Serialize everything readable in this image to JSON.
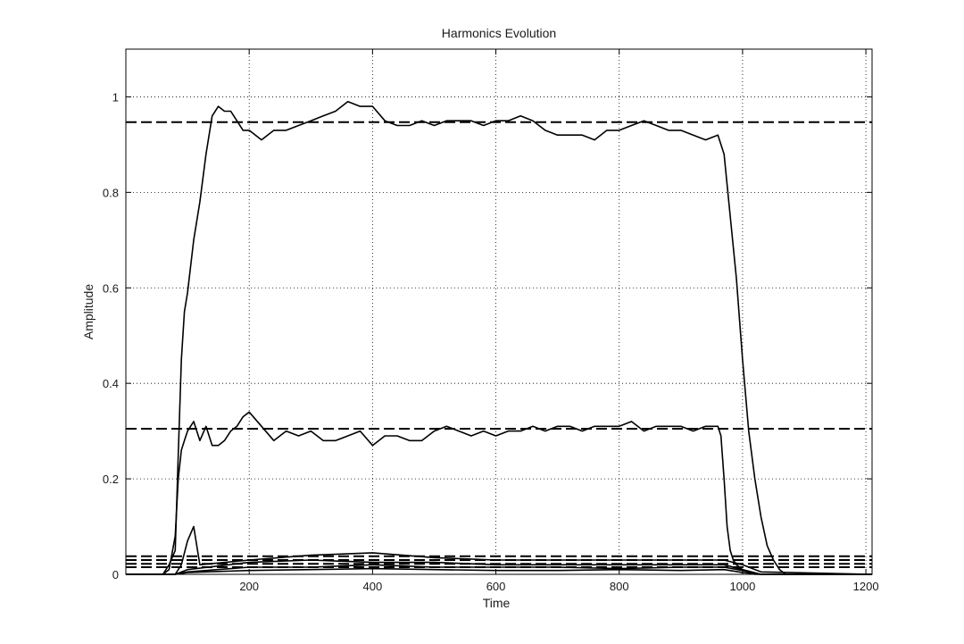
{
  "chart_data": {
    "type": "line",
    "title": "Harmonics Evolution",
    "xlabel": "Time",
    "ylabel": "Amplitude",
    "xlim": [
      0,
      1210
    ],
    "ylim": [
      0,
      1.1
    ],
    "xticks": [
      200,
      400,
      600,
      800,
      1000,
      1200
    ],
    "yticks": [
      0,
      0.2,
      0.4,
      0.6,
      0.8,
      1
    ],
    "ytick_labels": [
      "0",
      "0.2",
      "0.4",
      "0.6",
      "0.8",
      "1"
    ],
    "grid": true,
    "line_color": "#000000",
    "series": [
      {
        "style": "solid",
        "x": [
          0,
          60,
          70,
          80,
          85,
          90,
          95,
          100,
          110,
          120,
          130,
          140,
          150,
          160,
          170,
          180,
          190,
          200,
          220,
          240,
          260,
          280,
          300,
          320,
          340,
          350,
          360,
          380,
          400,
          420,
          440,
          460,
          480,
          500,
          520,
          540,
          560,
          580,
          600,
          620,
          640,
          660,
          680,
          700,
          720,
          740,
          760,
          780,
          800,
          820,
          840,
          860,
          880,
          900,
          920,
          940,
          960,
          970,
          980,
          990,
          1000,
          1010,
          1020,
          1030,
          1040,
          1050,
          1060,
          1070,
          1080,
          1100,
          1150,
          1210
        ],
        "y": [
          0.0,
          0.0,
          0.02,
          0.05,
          0.25,
          0.45,
          0.55,
          0.59,
          0.7,
          0.78,
          0.88,
          0.96,
          0.98,
          0.97,
          0.97,
          0.95,
          0.93,
          0.93,
          0.91,
          0.93,
          0.93,
          0.94,
          0.95,
          0.96,
          0.97,
          0.98,
          0.99,
          0.98,
          0.98,
          0.95,
          0.94,
          0.94,
          0.95,
          0.94,
          0.95,
          0.95,
          0.95,
          0.94,
          0.95,
          0.95,
          0.96,
          0.95,
          0.93,
          0.92,
          0.92,
          0.92,
          0.91,
          0.93,
          0.93,
          0.94,
          0.95,
          0.94,
          0.93,
          0.93,
          0.92,
          0.91,
          0.92,
          0.88,
          0.75,
          0.62,
          0.45,
          0.3,
          0.2,
          0.12,
          0.06,
          0.03,
          0.01,
          0.0,
          0.0,
          0.0,
          0.0,
          0.0
        ]
      },
      {
        "style": "solid",
        "x": [
          0,
          60,
          70,
          80,
          85,
          90,
          95,
          100,
          110,
          120,
          130,
          140,
          150,
          160,
          170,
          180,
          190,
          200,
          220,
          240,
          260,
          280,
          300,
          320,
          340,
          360,
          380,
          400,
          420,
          440,
          460,
          480,
          500,
          520,
          540,
          560,
          580,
          600,
          620,
          640,
          660,
          680,
          700,
          720,
          740,
          760,
          780,
          800,
          820,
          840,
          860,
          880,
          900,
          920,
          940,
          960,
          965,
          970,
          975,
          980,
          985,
          990,
          1000,
          1020,
          1060,
          1210
        ],
        "y": [
          0.0,
          0.0,
          0.01,
          0.08,
          0.2,
          0.26,
          0.28,
          0.3,
          0.32,
          0.28,
          0.31,
          0.27,
          0.27,
          0.28,
          0.3,
          0.31,
          0.33,
          0.34,
          0.31,
          0.28,
          0.3,
          0.29,
          0.3,
          0.28,
          0.28,
          0.29,
          0.3,
          0.27,
          0.29,
          0.29,
          0.28,
          0.28,
          0.3,
          0.31,
          0.3,
          0.29,
          0.3,
          0.29,
          0.3,
          0.3,
          0.31,
          0.3,
          0.31,
          0.31,
          0.3,
          0.31,
          0.31,
          0.31,
          0.32,
          0.3,
          0.31,
          0.31,
          0.31,
          0.3,
          0.31,
          0.31,
          0.29,
          0.2,
          0.1,
          0.05,
          0.03,
          0.02,
          0.01,
          0.0,
          0.0,
          0.0
        ]
      },
      {
        "style": "dashed",
        "x": [
          0,
          1210
        ],
        "y": [
          0.947,
          0.947
        ]
      },
      {
        "style": "dashed",
        "x": [
          0,
          1210
        ],
        "y": [
          0.305,
          0.305
        ]
      },
      {
        "style": "dashed",
        "x": [
          0,
          1210
        ],
        "y": [
          0.038,
          0.038
        ]
      },
      {
        "style": "dashed",
        "x": [
          0,
          1210
        ],
        "y": [
          0.03,
          0.03
        ]
      },
      {
        "style": "dashed",
        "x": [
          0,
          1210
        ],
        "y": [
          0.022,
          0.022
        ]
      },
      {
        "style": "dashed",
        "x": [
          0,
          1210
        ],
        "y": [
          0.015,
          0.015
        ]
      },
      {
        "style": "solid",
        "x": [
          0,
          80,
          90,
          100,
          110,
          120,
          200,
          300,
          400,
          500,
          600,
          700,
          800,
          900,
          970,
          1000,
          1030,
          1210
        ],
        "y": [
          0.0,
          0.0,
          0.02,
          0.07,
          0.1,
          0.02,
          0.03,
          0.04,
          0.045,
          0.035,
          0.03,
          0.03,
          0.03,
          0.03,
          0.03,
          0.02,
          0.005,
          0.0
        ]
      },
      {
        "style": "solid",
        "x": [
          0,
          80,
          100,
          200,
          300,
          400,
          500,
          600,
          700,
          800,
          900,
          970,
          1000,
          1030,
          1210
        ],
        "y": [
          0.0,
          0.0,
          0.01,
          0.025,
          0.03,
          0.025,
          0.025,
          0.02,
          0.02,
          0.02,
          0.02,
          0.02,
          0.01,
          0.0,
          0.0
        ]
      },
      {
        "style": "solid",
        "x": [
          0,
          80,
          100,
          200,
          300,
          400,
          500,
          600,
          700,
          800,
          900,
          970,
          1000,
          1030,
          1210
        ],
        "y": [
          0.0,
          0.0,
          0.005,
          0.015,
          0.015,
          0.02,
          0.015,
          0.015,
          0.015,
          0.012,
          0.015,
          0.015,
          0.008,
          0.0,
          0.0
        ]
      },
      {
        "style": "solid",
        "x": [
          0,
          80,
          100,
          200,
          300,
          400,
          500,
          600,
          700,
          800,
          900,
          970,
          1000,
          1030,
          1210
        ],
        "y": [
          0.0,
          0.0,
          0.004,
          0.008,
          0.01,
          0.012,
          0.01,
          0.008,
          0.008,
          0.01,
          0.008,
          0.01,
          0.004,
          0.0,
          0.0
        ]
      }
    ]
  }
}
